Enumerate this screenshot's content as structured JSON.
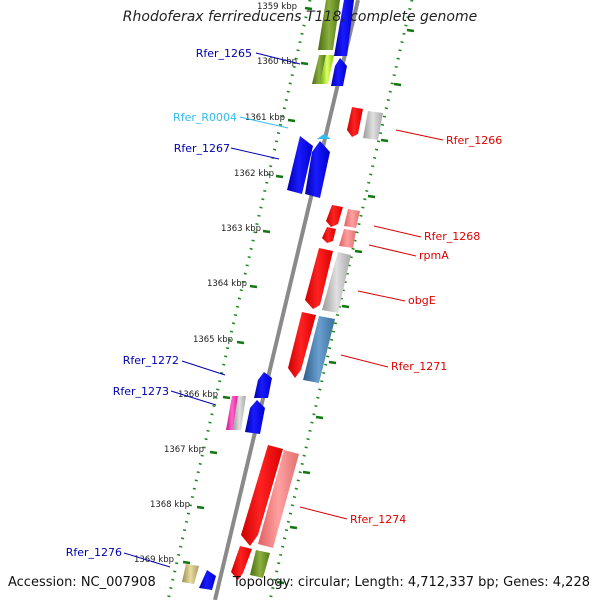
{
  "title": "Rhodoferax ferrireducens T118, complete genome",
  "accession": "Accession: NC_007908",
  "topology": "Topology: circular; Length: 4,712,337 bp; Genes: 4,228",
  "colors": {
    "forward_gene": "#0000ff",
    "reverse_gene": "#ff0000",
    "forward_label": "#0000b0",
    "reverse_label": "#dd0000",
    "rna_label": "#33bbee",
    "backbone": "#888888",
    "tick": "#117711"
  },
  "ticks": [
    {
      "label": "1359 kbp"
    },
    {
      "label": "1360 kbp"
    },
    {
      "label": "1361 kbp"
    },
    {
      "label": "1362 kbp"
    },
    {
      "label": "1363 kbp"
    },
    {
      "label": "1364 kbp"
    },
    {
      "label": "1365 kbp"
    },
    {
      "label": "1366 kbp"
    },
    {
      "label": "1367 kbp"
    },
    {
      "label": "1368 kbp"
    },
    {
      "label": "1369 kbp"
    }
  ],
  "gene_labels": {
    "rfer_1265": "Rfer_1265",
    "rfer_r0004": "Rfer_R0004",
    "rfer_1267": "Rfer_1267",
    "rfer_1272": "Rfer_1272",
    "rfer_1273": "Rfer_1273",
    "rfer_1276": "Rfer_1276",
    "rfer_1266": "Rfer_1266",
    "rfer_1268": "Rfer_1268",
    "rpma": "rpmA",
    "obge": "obgE",
    "rfer_1271": "Rfer_1271",
    "rfer_1274": "Rfer_1274"
  }
}
